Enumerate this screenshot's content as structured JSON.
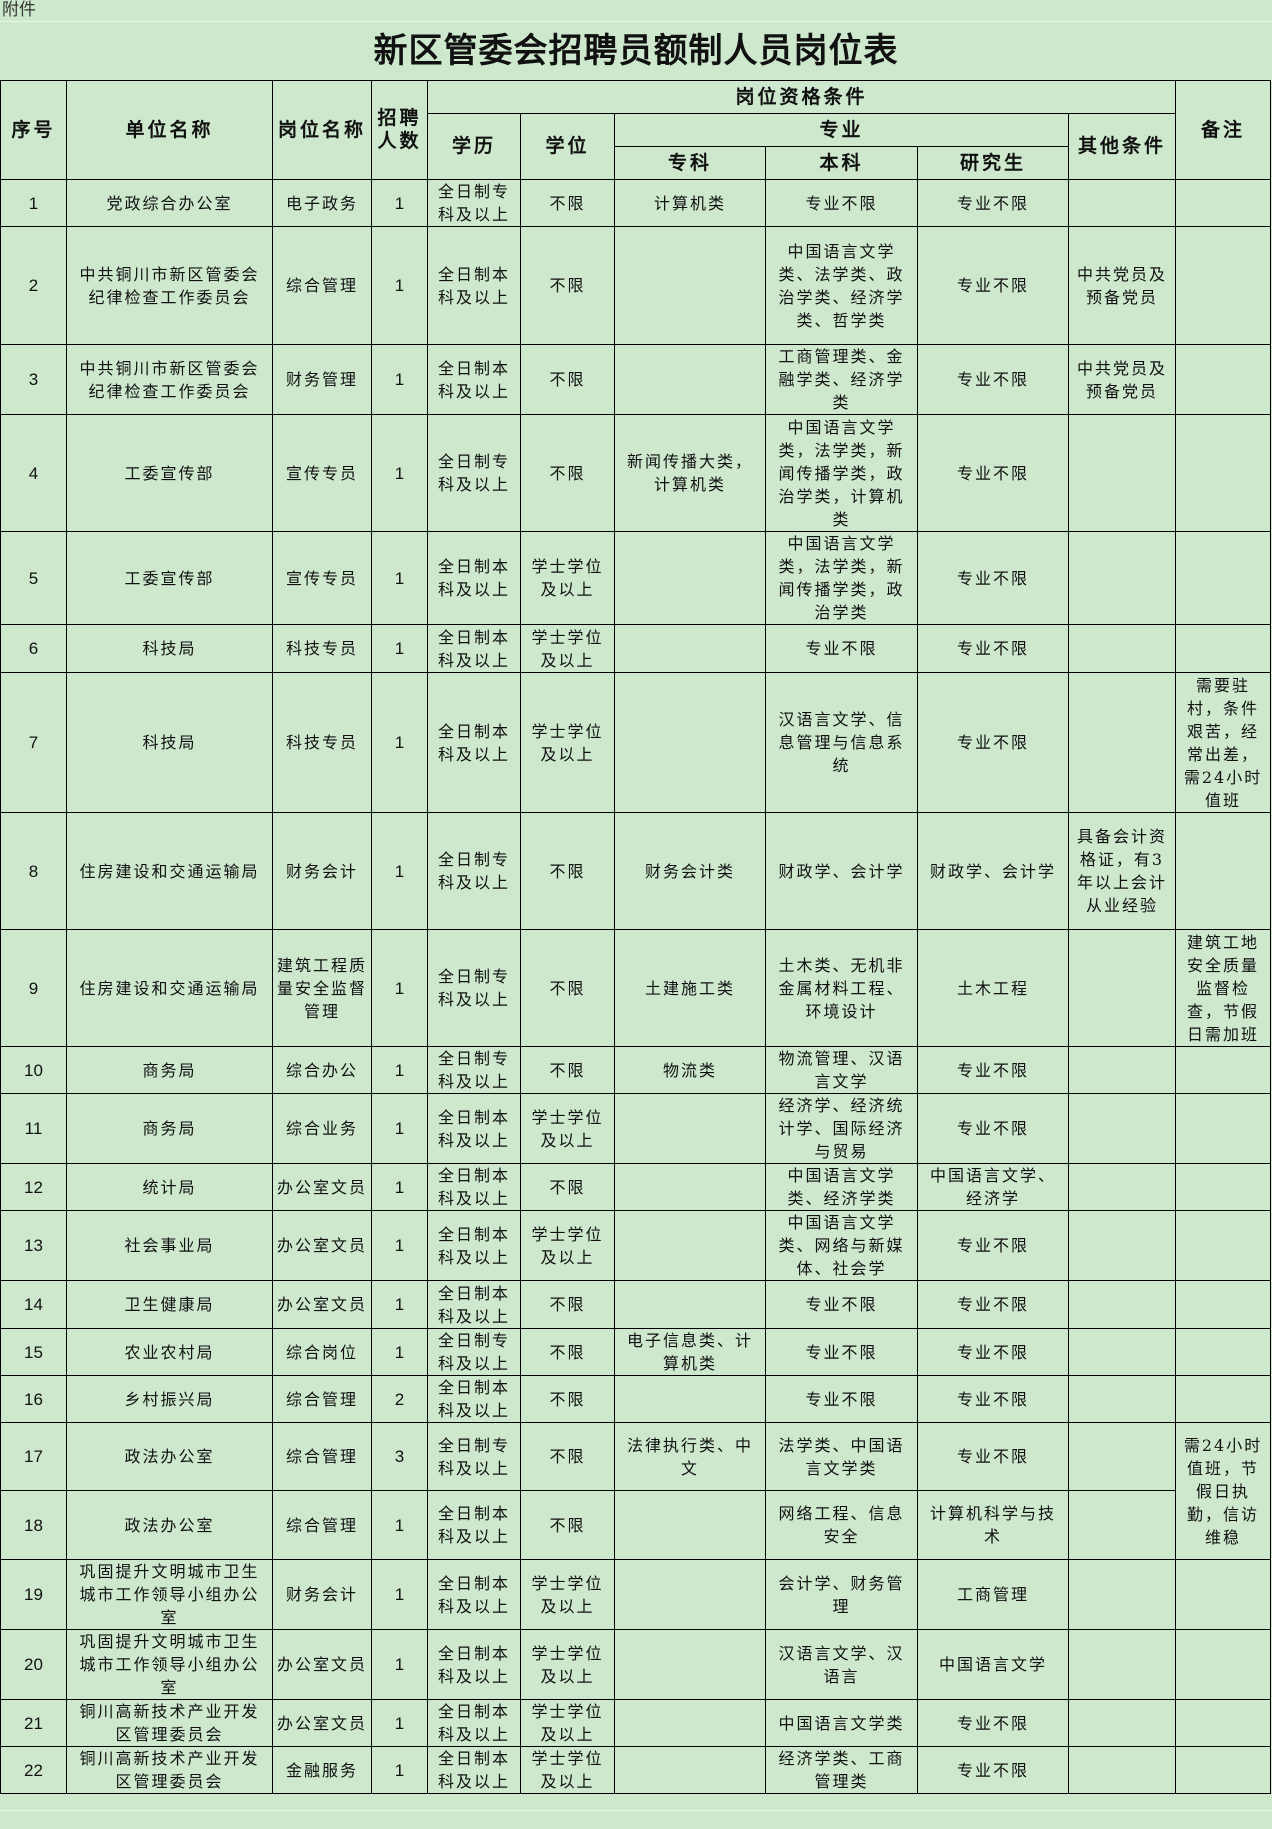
{
  "attachment_label": "附件",
  "title": "新区管委会招聘员额制人员岗位表",
  "header": {
    "seq": "序号",
    "unit": "单位名称",
    "post": "岗位名称",
    "count": "招聘人数",
    "qualifications": "岗位资格条件",
    "education": "学历",
    "degree": "学位",
    "major": "专业",
    "junior_college": "专科",
    "undergraduate": "本科",
    "graduate": "研究生",
    "other": "其他条件",
    "remark": "备注"
  },
  "rows": [
    {
      "seq": "1",
      "unit": "党政综合办公室",
      "post": "电子政务",
      "count": "1",
      "education": "全日制专科及以上",
      "degree": "不限",
      "junior": "计算机类",
      "undergrad": "专业不限",
      "grad": "专业不限",
      "other": "",
      "remark": ""
    },
    {
      "seq": "2",
      "unit": "中共铜川市新区管委会纪律检查工作委员会",
      "post": "综合管理",
      "count": "1",
      "education": "全日制本科及以上",
      "degree": "不限",
      "junior": "",
      "undergrad": "中国语言文学类、法学类、政治学类、经济学类、哲学类",
      "grad": "专业不限",
      "other": "中共党员及预备党员",
      "remark": ""
    },
    {
      "seq": "3",
      "unit": "中共铜川市新区管委会纪律检查工作委员会",
      "post": "财务管理",
      "count": "1",
      "education": "全日制本科及以上",
      "degree": "不限",
      "junior": "",
      "undergrad": "工商管理类、金融学类、经济学类",
      "grad": "专业不限",
      "other": "中共党员及预备党员",
      "remark": ""
    },
    {
      "seq": "4",
      "unit": "工委宣传部",
      "post": "宣传专员",
      "count": "1",
      "education": "全日制专科及以上",
      "degree": "不限",
      "junior": "新闻传播大类，计算机类",
      "undergrad": "中国语言文学类，法学类，新闻传播学类，政治学类，计算机类",
      "grad": "专业不限",
      "other": "",
      "remark": ""
    },
    {
      "seq": "5",
      "unit": "工委宣传部",
      "post": "宣传专员",
      "count": "1",
      "education": "全日制本科及以上",
      "degree": "学士学位及以上",
      "junior": "",
      "undergrad": "中国语言文学类，法学类，新闻传播学类，政治学类",
      "grad": "专业不限",
      "other": "",
      "remark": ""
    },
    {
      "seq": "6",
      "unit": "科技局",
      "post": "科技专员",
      "count": "1",
      "education": "全日制本科及以上",
      "degree": "学士学位及以上",
      "junior": "",
      "undergrad": "专业不限",
      "grad": "专业不限",
      "other": "",
      "remark": ""
    },
    {
      "seq": "7",
      "unit": "科技局",
      "post": "科技专员",
      "count": "1",
      "education": "全日制本科及以上",
      "degree": "学士学位及以上",
      "junior": "",
      "undergrad": "汉语言文学、信息管理与信息系统",
      "grad": "专业不限",
      "other": "",
      "remark": "需要驻村，条件艰苦，经常出差，需24小时值班"
    },
    {
      "seq": "8",
      "unit": "住房建设和交通运输局",
      "post": "财务会计",
      "count": "1",
      "education": "全日制专科及以上",
      "degree": "不限",
      "junior": "财务会计类",
      "undergrad": "财政学、会计学",
      "grad": "财政学、会计学",
      "other": "具备会计资格证，有3年以上会计从业经验",
      "remark": ""
    },
    {
      "seq": "9",
      "unit": "住房建设和交通运输局",
      "post": "建筑工程质量安全监督管理",
      "count": "1",
      "education": "全日制专科及以上",
      "degree": "不限",
      "junior": "土建施工类",
      "undergrad": "土木类、无机非金属材料工程、环境设计",
      "grad": "土木工程",
      "other": "",
      "remark": "建筑工地安全质量监督检查，节假日需加班"
    },
    {
      "seq": "10",
      "unit": "商务局",
      "post": "综合办公",
      "count": "1",
      "education": "全日制专科及以上",
      "degree": "不限",
      "junior": "物流类",
      "undergrad": "物流管理、汉语言文学",
      "grad": "专业不限",
      "other": "",
      "remark": ""
    },
    {
      "seq": "11",
      "unit": "商务局",
      "post": "综合业务",
      "count": "1",
      "education": "全日制本科及以上",
      "degree": "学士学位及以上",
      "junior": "",
      "undergrad": "经济学、经济统计学、国际经济与贸易",
      "grad": "专业不限",
      "other": "",
      "remark": ""
    },
    {
      "seq": "12",
      "unit": "统计局",
      "post": "办公室文员",
      "count": "1",
      "education": "全日制本科及以上",
      "degree": "不限",
      "junior": "",
      "undergrad": "中国语言文学类、经济学类",
      "grad": "中国语言文学、经济学",
      "other": "",
      "remark": ""
    },
    {
      "seq": "13",
      "unit": "社会事业局",
      "post": "办公室文员",
      "count": "1",
      "education": "全日制本科及以上",
      "degree": "学士学位及以上",
      "junior": "",
      "undergrad": "中国语言文学类、网络与新媒体、社会学",
      "grad": "专业不限",
      "other": "",
      "remark": ""
    },
    {
      "seq": "14",
      "unit": "卫生健康局",
      "post": "办公室文员",
      "count": "1",
      "education": "全日制本科及以上",
      "degree": "不限",
      "junior": "",
      "undergrad": "专业不限",
      "grad": "专业不限",
      "other": "",
      "remark": ""
    },
    {
      "seq": "15",
      "unit": "农业农村局",
      "post": "综合岗位",
      "count": "1",
      "education": "全日制专科及以上",
      "degree": "不限",
      "junior": "电子信息类、计算机类",
      "undergrad": "专业不限",
      "grad": "专业不限",
      "other": "",
      "remark": ""
    },
    {
      "seq": "16",
      "unit": "乡村振兴局",
      "post": "综合管理",
      "count": "2",
      "education": "全日制本科及以上",
      "degree": "不限",
      "junior": "",
      "undergrad": "专业不限",
      "grad": "专业不限",
      "other": "",
      "remark": ""
    },
    {
      "seq": "17",
      "unit": "政法办公室",
      "post": "综合管理",
      "count": "3",
      "education": "全日制专科及以上",
      "degree": "不限",
      "junior": "法律执行类、中文",
      "undergrad": "法学类、中国语言文学类",
      "grad": "专业不限",
      "other": "",
      "remark": "需24小时值班，节假日执勤，信访维稳"
    },
    {
      "seq": "18",
      "unit": "政法办公室",
      "post": "综合管理",
      "count": "1",
      "education": "全日制本科及以上",
      "degree": "不限",
      "junior": "",
      "undergrad": "网络工程、信息安全",
      "grad": "计算机科学与技术",
      "other": "",
      "remark": ""
    },
    {
      "seq": "19",
      "unit": "巩固提升文明城市卫生城市工作领导小组办公室",
      "post": "财务会计",
      "count": "1",
      "education": "全日制本科及以上",
      "degree": "学士学位及以上",
      "junior": "",
      "undergrad": "会计学、财务管理",
      "grad": "工商管理",
      "other": "",
      "remark": ""
    },
    {
      "seq": "20",
      "unit": "巩固提升文明城市卫生城市工作领导小组办公室",
      "post": "办公室文员",
      "count": "1",
      "education": "全日制本科及以上",
      "degree": "学士学位及以上",
      "junior": "",
      "undergrad": "汉语言文学、汉语言",
      "grad": "中国语言文学",
      "other": "",
      "remark": ""
    },
    {
      "seq": "21",
      "unit": "铜川高新技术产业开发区管理委员会",
      "post": "办公室文员",
      "count": "1",
      "education": "全日制本科及以上",
      "degree": "学士学位及以上",
      "junior": "",
      "undergrad": "中国语言文学类",
      "grad": "专业不限",
      "other": "",
      "remark": ""
    },
    {
      "seq": "22",
      "unit": "铜川高新技术产业开发区管理委员会",
      "post": "金融服务",
      "count": "1",
      "education": "全日制本科及以上",
      "degree": "学士学位及以上",
      "junior": "",
      "undergrad": "经济学类、工商管理类",
      "grad": "专业不限",
      "other": "",
      "remark": ""
    }
  ]
}
